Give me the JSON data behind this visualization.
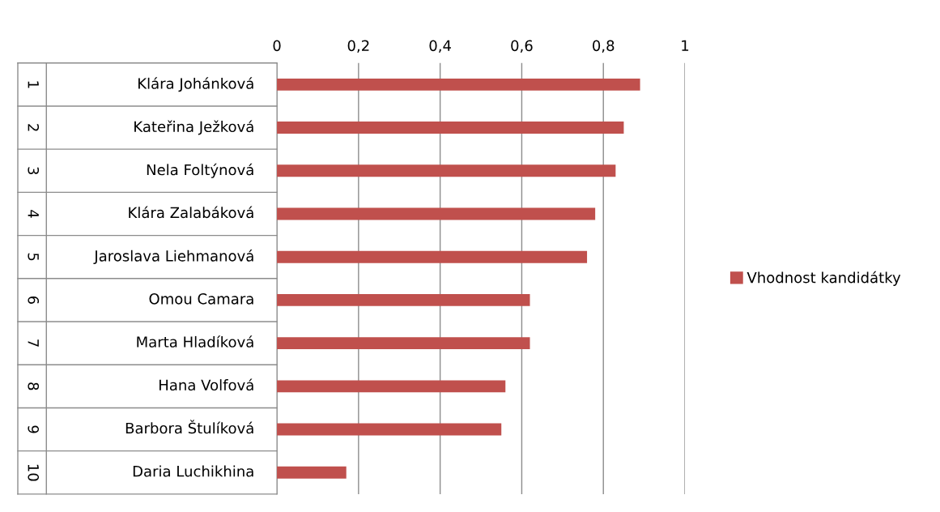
{
  "chart_data": {
    "type": "bar",
    "orientation": "horizontal",
    "categories": [
      "Klára Johánková",
      "Kateřina Ježková",
      "Nela Foltýnová",
      "Klára Zalabáková",
      "Jaroslava Liehmanová",
      "Omou Camara",
      "Marta Hladíková",
      "Hana Volfová",
      "Barbora Štulíková",
      "Daria Luchikhina"
    ],
    "series": [
      {
        "name": "Vhodnost kandidátky",
        "color": "#c0504d",
        "values": [
          0.89,
          0.85,
          0.83,
          0.78,
          0.76,
          0.62,
          0.62,
          0.56,
          0.55,
          0.17
        ]
      }
    ],
    "xlim": [
      0,
      1
    ],
    "xticks": [
      0,
      {
        "value": 0.2,
        "label": "0,2"
      },
      {
        "value": 0.4,
        "label": "0,4"
      },
      {
        "value": 0.6,
        "label": "0,6"
      },
      {
        "value": 0.8,
        "label": "0,8"
      },
      1
    ],
    "grid": "x",
    "legend": "right",
    "annotations": [
      "1",
      "2",
      "3",
      "4",
      "5",
      "6",
      "7",
      "8",
      "9",
      "10"
    ]
  }
}
